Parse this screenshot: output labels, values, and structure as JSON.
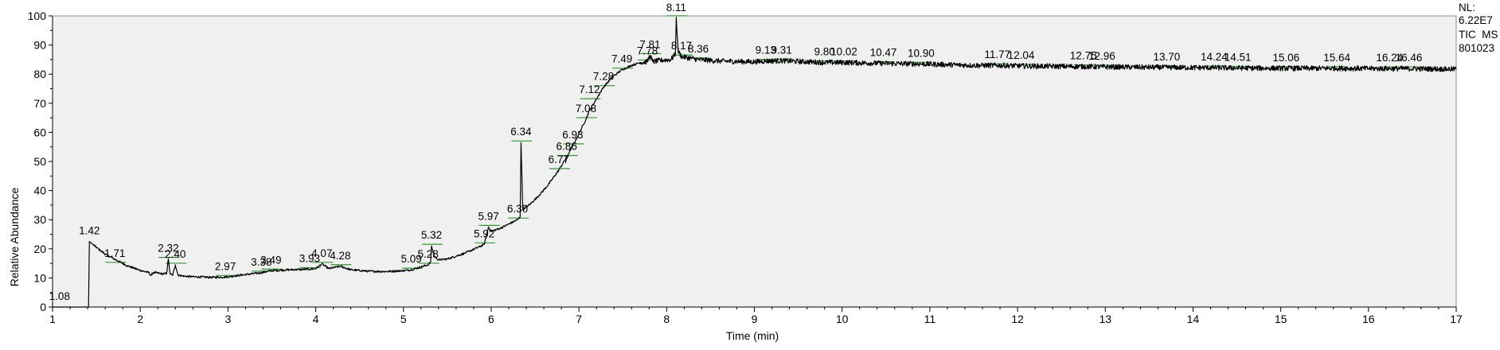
{
  "chart_data": {
    "type": "line",
    "xlabel": "Time (min)",
    "ylabel": "Relative Abundance",
    "xlim": [
      1,
      17
    ],
    "ylim": [
      0,
      100
    ],
    "x_ticks": [
      1,
      2,
      3,
      4,
      5,
      6,
      7,
      8,
      9,
      10,
      11,
      12,
      13,
      14,
      15,
      16,
      17
    ],
    "y_ticks": [
      0,
      10,
      20,
      30,
      40,
      50,
      60,
      70,
      80,
      90,
      100
    ],
    "info": {
      "nl_label": "NL:",
      "nl_value": "6.22E7",
      "scan_filter": "TIC  MS",
      "sample": "801023"
    },
    "line_color": "#000000",
    "integration_color": "#2e9c2e",
    "trace": [
      [
        1.0,
        0
      ],
      [
        1.41,
        0
      ],
      [
        1.42,
        22.5
      ],
      [
        1.46,
        21.5
      ],
      [
        1.52,
        20.0
      ],
      [
        1.6,
        18.2
      ],
      [
        1.71,
        16.4
      ],
      [
        1.85,
        14.2
      ],
      [
        2.0,
        12.6
      ],
      [
        2.1,
        11.8
      ],
      [
        2.12,
        10.8
      ],
      [
        2.15,
        11.9
      ],
      [
        2.25,
        11.4
      ],
      [
        2.3,
        11.5
      ],
      [
        2.32,
        16.5
      ],
      [
        2.34,
        11.3
      ],
      [
        2.37,
        11.0
      ],
      [
        2.4,
        14.5
      ],
      [
        2.43,
        11.0
      ],
      [
        2.5,
        10.6
      ],
      [
        2.6,
        10.4
      ],
      [
        2.8,
        10.2
      ],
      [
        2.97,
        10.3
      ],
      [
        3.1,
        10.8
      ],
      [
        3.38,
        11.8
      ],
      [
        3.49,
        12.5
      ],
      [
        3.7,
        12.8
      ],
      [
        3.93,
        13.0
      ],
      [
        4.0,
        13.2
      ],
      [
        4.07,
        14.8
      ],
      [
        4.15,
        13.2
      ],
      [
        4.28,
        14.0
      ],
      [
        4.4,
        12.8
      ],
      [
        4.6,
        12.3
      ],
      [
        4.8,
        12.2
      ],
      [
        5.0,
        12.5
      ],
      [
        5.09,
        12.8
      ],
      [
        5.28,
        14.5
      ],
      [
        5.31,
        15.5
      ],
      [
        5.32,
        21.0
      ],
      [
        5.35,
        17.5
      ],
      [
        5.4,
        16.2
      ],
      [
        5.5,
        16.5
      ],
      [
        5.6,
        17.5
      ],
      [
        5.7,
        18.5
      ],
      [
        5.8,
        19.8
      ],
      [
        5.92,
        21.5
      ],
      [
        5.97,
        27.5
      ],
      [
        6.0,
        26.0
      ],
      [
        6.1,
        27.0
      ],
      [
        6.2,
        28.5
      ],
      [
        6.3,
        30.0
      ],
      [
        6.33,
        31.0
      ],
      [
        6.34,
        56.5
      ],
      [
        6.36,
        33.5
      ],
      [
        6.45,
        35.5
      ],
      [
        6.55,
        38.5
      ],
      [
        6.65,
        42.0
      ],
      [
        6.77,
        47.0
      ],
      [
        6.86,
        51.5
      ],
      [
        6.93,
        55.5
      ],
      [
        7.0,
        59.5
      ],
      [
        7.08,
        64.5
      ],
      [
        7.12,
        67.5
      ],
      [
        7.2,
        71.5
      ],
      [
        7.28,
        75.5
      ],
      [
        7.38,
        79.0
      ],
      [
        7.49,
        81.5
      ],
      [
        7.6,
        83.0
      ],
      [
        7.7,
        84.0
      ],
      [
        7.78,
        84.3
      ],
      [
        7.81,
        86.5
      ],
      [
        7.84,
        84.3
      ],
      [
        7.95,
        84.8
      ],
      [
        8.05,
        85.0
      ],
      [
        8.1,
        87.0
      ],
      [
        8.11,
        99.5
      ],
      [
        8.13,
        88.0
      ],
      [
        8.17,
        86.0
      ],
      [
        8.36,
        85.0
      ],
      [
        8.6,
        84.5
      ],
      [
        9.0,
        84.2
      ],
      [
        9.13,
        84.5
      ],
      [
        9.31,
        84.6
      ],
      [
        9.8,
        84.0
      ],
      [
        10.02,
        84.0
      ],
      [
        10.47,
        83.7
      ],
      [
        10.9,
        83.5
      ],
      [
        11.5,
        83.0
      ],
      [
        11.77,
        83.0
      ],
      [
        12.04,
        82.8
      ],
      [
        12.75,
        82.6
      ],
      [
        12.96,
        82.5
      ],
      [
        13.7,
        82.3
      ],
      [
        14.24,
        82.2
      ],
      [
        14.51,
        82.1
      ],
      [
        15.06,
        82.0
      ],
      [
        15.64,
        82.0
      ],
      [
        16.24,
        81.9
      ],
      [
        16.46,
        81.9
      ],
      [
        17.0,
        81.7
      ]
    ],
    "peak_labels": [
      {
        "text": "1.08",
        "x": 1.08,
        "y": 0.0
      },
      {
        "text": "1.42",
        "x": 1.42,
        "y": 22.5
      },
      {
        "text": "1.71",
        "x": 1.71,
        "y": 14.8
      },
      {
        "text": "2.32",
        "x": 2.32,
        "y": 16.5
      },
      {
        "text": "2.40",
        "x": 2.4,
        "y": 14.5
      },
      {
        "text": "2.97",
        "x": 2.97,
        "y": 10.3
      },
      {
        "text": "3.38",
        "x": 3.38,
        "y": 11.8
      },
      {
        "text": "3.49",
        "x": 3.49,
        "y": 12.5
      },
      {
        "text": "3.93",
        "x": 3.93,
        "y": 13.0
      },
      {
        "text": "4.07",
        "x": 4.07,
        "y": 14.8
      },
      {
        "text": "4.28",
        "x": 4.28,
        "y": 14.0
      },
      {
        "text": "5.09",
        "x": 5.09,
        "y": 12.8
      },
      {
        "text": "5.28",
        "x": 5.28,
        "y": 14.5
      },
      {
        "text": "5.32",
        "x": 5.32,
        "y": 21.0
      },
      {
        "text": "5.92",
        "x": 5.92,
        "y": 21.5
      },
      {
        "text": "5.97",
        "x": 5.97,
        "y": 27.5
      },
      {
        "text": "6.30",
        "x": 6.3,
        "y": 30.0
      },
      {
        "text": "6.34",
        "x": 6.34,
        "y": 56.5
      },
      {
        "text": "6.77",
        "x": 6.77,
        "y": 47.0
      },
      {
        "text": "6.86",
        "x": 6.86,
        "y": 51.5
      },
      {
        "text": "6.93",
        "x": 6.93,
        "y": 55.5
      },
      {
        "text": "7.08",
        "x": 7.08,
        "y": 64.5
      },
      {
        "text": "7.12",
        "x": 7.12,
        "y": 71.0
      },
      {
        "text": "7.28",
        "x": 7.28,
        "y": 75.5
      },
      {
        "text": "7.49",
        "x": 7.49,
        "y": 81.5
      },
      {
        "text": "7.78",
        "x": 7.78,
        "y": 84.3
      },
      {
        "text": "7.81",
        "x": 7.81,
        "y": 86.5
      },
      {
        "text": "8.11",
        "x": 8.11,
        "y": 99.5
      },
      {
        "text": "8.17",
        "x": 8.17,
        "y": 86.0
      },
      {
        "text": "8.36",
        "x": 8.36,
        "y": 85.0
      },
      {
        "text": "9.13",
        "x": 9.13,
        "y": 84.5
      },
      {
        "text": "9.31",
        "x": 9.31,
        "y": 84.6
      },
      {
        "text": "9.80",
        "x": 9.8,
        "y": 84.0
      },
      {
        "text": "10.02",
        "x": 10.02,
        "y": 84.0
      },
      {
        "text": "10.47",
        "x": 10.47,
        "y": 83.7
      },
      {
        "text": "10.90",
        "x": 10.9,
        "y": 83.5
      },
      {
        "text": "11.77",
        "x": 11.77,
        "y": 83.0
      },
      {
        "text": "12.04",
        "x": 12.04,
        "y": 82.8
      },
      {
        "text": "12.75",
        "x": 12.75,
        "y": 82.6
      },
      {
        "text": "12.96",
        "x": 12.96,
        "y": 82.5
      },
      {
        "text": "13.70",
        "x": 13.7,
        "y": 82.3
      },
      {
        "text": "14.24",
        "x": 14.24,
        "y": 82.2
      },
      {
        "text": "14.51",
        "x": 14.51,
        "y": 82.1
      },
      {
        "text": "15.06",
        "x": 15.06,
        "y": 82.0
      },
      {
        "text": "15.64",
        "x": 15.64,
        "y": 82.0
      },
      {
        "text": "16.24",
        "x": 16.24,
        "y": 81.9
      },
      {
        "text": "16.46",
        "x": 16.46,
        "y": 81.9
      }
    ]
  }
}
